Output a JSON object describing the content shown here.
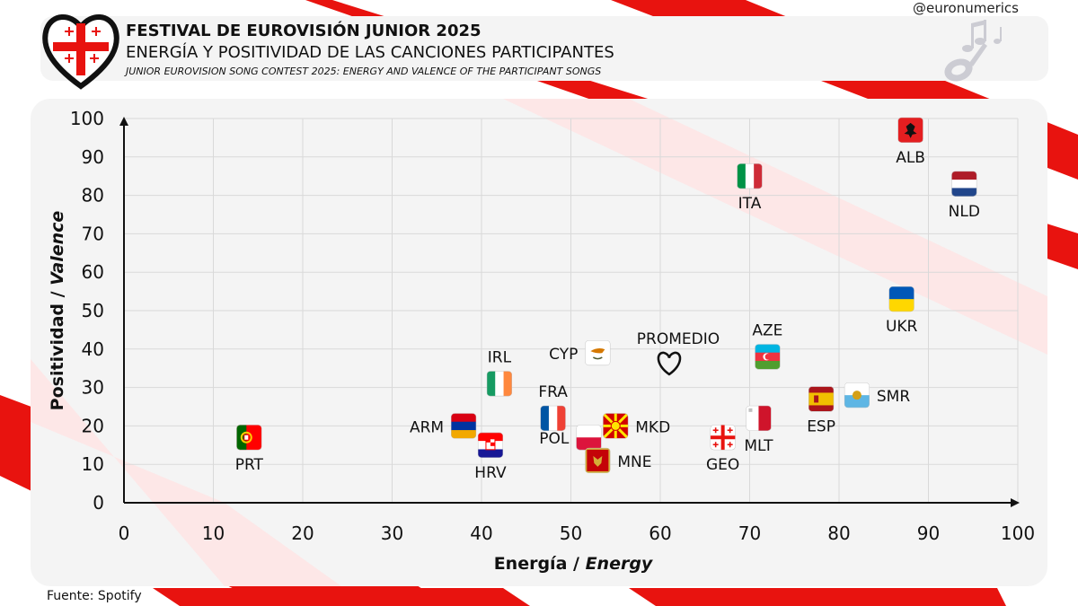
{
  "header": {
    "title": "FESTIVAL DE EUROVISIÓN JUNIOR 2025",
    "subtitle": "ENERGÍA Y POSITIVIDAD DE LAS CANCIONES PARTICIPANTES",
    "subtitle_en": "JUNIOR EUROVISION SONG CONTEST 2025: ENERGY AND VALENCE OF THE PARTICIPANT SONGS",
    "handle": "@euronumerics"
  },
  "footer": {
    "source": "Fuente: Spotify"
  },
  "icons": {
    "logo": "heart-flag-logo-icon",
    "decoration": "music-notes-icon",
    "average": "heart-outline-icon"
  },
  "colors": {
    "accent_red": "#e8130f",
    "panel": "#f4f4f4",
    "grid": "#d9d9d9"
  },
  "chart_data": {
    "type": "scatter",
    "xlabel_es": "Energía",
    "xlabel_en": "Energy",
    "ylabel_es": "Positividad",
    "ylabel_en": "Valence",
    "xlim": [
      0,
      100
    ],
    "ylim": [
      0,
      100
    ],
    "xticks": [
      0,
      10,
      20,
      30,
      40,
      50,
      60,
      70,
      80,
      90,
      100
    ],
    "yticks": [
      0,
      10,
      20,
      30,
      40,
      50,
      60,
      70,
      80,
      90,
      100
    ],
    "grid": true,
    "points": [
      {
        "label": "ALB",
        "x": 88,
        "y": 97,
        "flag": "alb",
        "label_pos": "below"
      },
      {
        "label": "NLD",
        "x": 94,
        "y": 83,
        "flag": "nld",
        "label_pos": "below"
      },
      {
        "label": "ITA",
        "x": 70,
        "y": 85,
        "flag": "ita",
        "label_pos": "below"
      },
      {
        "label": "UKR",
        "x": 87,
        "y": 53,
        "flag": "ukr",
        "label_pos": "below"
      },
      {
        "label": "AZE",
        "x": 72,
        "y": 38,
        "flag": "aze",
        "label_pos": "above"
      },
      {
        "label": "SMR",
        "x": 82,
        "y": 28,
        "flag": "smr",
        "label_pos": "right"
      },
      {
        "label": "ESP",
        "x": 78,
        "y": 27,
        "flag": "esp",
        "label_pos": "below"
      },
      {
        "label": "MLT",
        "x": 71,
        "y": 22,
        "flag": "mlt",
        "label_pos": "below"
      },
      {
        "label": "GEO",
        "x": 67,
        "y": 17,
        "flag": "geo",
        "label_pos": "below"
      },
      {
        "label": "CYP",
        "x": 53,
        "y": 39,
        "flag": "cyp",
        "label_pos": "left"
      },
      {
        "label": "FRA",
        "x": 48,
        "y": 22,
        "flag": "fra",
        "label_pos": "above"
      },
      {
        "label": "MKD",
        "x": 55,
        "y": 20,
        "flag": "mkd",
        "label_pos": "right"
      },
      {
        "label": "POL",
        "x": 52,
        "y": 17,
        "flag": "pol",
        "label_pos": "left"
      },
      {
        "label": "MNE",
        "x": 53,
        "y": 11,
        "flag": "mne",
        "label_pos": "right"
      },
      {
        "label": "IRL",
        "x": 42,
        "y": 31,
        "flag": "irl",
        "label_pos": "above"
      },
      {
        "label": "ARM",
        "x": 38,
        "y": 20,
        "flag": "arm",
        "label_pos": "left"
      },
      {
        "label": "HRV",
        "x": 41,
        "y": 15,
        "flag": "hrv",
        "label_pos": "below"
      },
      {
        "label": "PRT",
        "x": 14,
        "y": 17,
        "flag": "prt",
        "label_pos": "below"
      }
    ],
    "average": {
      "label": "PROMEDIO",
      "x": 61,
      "y": 36
    }
  }
}
